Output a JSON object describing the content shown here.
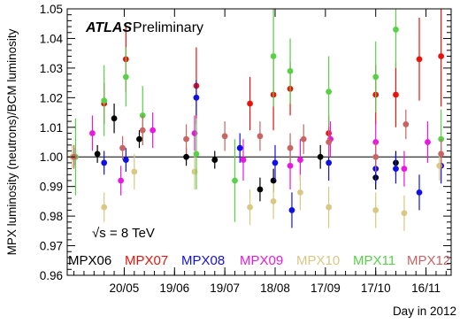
{
  "chart_data": {
    "type": "scatter",
    "brand": "ATLAS",
    "status": "Preliminary",
    "energy_label": "√s = 8 TeV",
    "xlabel": "Day in 2012",
    "ylabel": "MPX luminosity (neutrons)/BCM luminosity",
    "ylim": [
      0.96,
      1.05
    ],
    "y_ticks": [
      "0.96",
      "0.97",
      "0.98",
      "0.99",
      "1.00",
      "1.01",
      "1.02",
      "1.03",
      "1.04",
      "1.05"
    ],
    "x_ticks": [
      "20/05",
      "19/06",
      "19/07",
      "18/08",
      "17/09",
      "17/10",
      "16/11"
    ],
    "reference_line": 1.0,
    "series": [
      {
        "name": "MPX06",
        "color": "#000000",
        "points": [
          {
            "x": "2012-04-20",
            "y": 1.0,
            "err": 0.003
          },
          {
            "x": "2012-05-04",
            "y": 1.001,
            "err": 0.003
          },
          {
            "x": "2012-05-14",
            "y": 1.013,
            "err": 0.005
          },
          {
            "x": "2012-05-29",
            "y": 1.006,
            "err": 0.003
          },
          {
            "x": "2012-06-26",
            "y": 1.0,
            "err": 0.003
          },
          {
            "x": "2012-07-13",
            "y": 0.999,
            "err": 0.003
          },
          {
            "x": "2012-08-09",
            "y": 0.989,
            "err": 0.004
          },
          {
            "x": "2012-08-17",
            "y": 0.992,
            "err": 0.004
          },
          {
            "x": "2012-09-14",
            "y": 1.0,
            "err": 0.004
          },
          {
            "x": "2012-10-17",
            "y": 0.993,
            "err": 0.004
          },
          {
            "x": "2012-10-29",
            "y": 0.998,
            "err": 0.004
          }
        ]
      },
      {
        "name": "MPX07",
        "color": "#e8140c",
        "points": [
          {
            "x": "2012-05-08",
            "y": 1.018,
            "err": 0.007
          },
          {
            "x": "2012-05-21",
            "y": 1.033,
            "err": 0.011
          },
          {
            "x": "2012-07-02",
            "y": 1.024,
            "err": 0.013
          },
          {
            "x": "2012-08-03",
            "y": 1.018,
            "err": 0.009
          },
          {
            "x": "2012-08-17",
            "y": 1.021,
            "err": 0.012
          },
          {
            "x": "2012-08-27",
            "y": 1.023,
            "err": 0.009
          },
          {
            "x": "2012-09-19",
            "y": 1.008,
            "err": 0.006
          },
          {
            "x": "2012-10-17",
            "y": 1.021,
            "err": 0.01
          },
          {
            "x": "2012-10-29",
            "y": 1.021,
            "err": 0.011
          },
          {
            "x": "2012-11-12",
            "y": 1.033,
            "err": 0.014
          },
          {
            "x": "2012-11-25",
            "y": 1.034,
            "err": 0.017
          }
        ]
      },
      {
        "name": "MPX08",
        "color": "#1010e6",
        "points": [
          {
            "x": "2012-05-08",
            "y": 0.998,
            "err": 0.004
          },
          {
            "x": "2012-05-21",
            "y": 0.999,
            "err": 0.004
          },
          {
            "x": "2012-07-02",
            "y": 1.02,
            "err": 0.006
          },
          {
            "x": "2012-07-28",
            "y": 1.003,
            "err": 0.005
          },
          {
            "x": "2012-08-18",
            "y": 0.998,
            "err": 0.006
          },
          {
            "x": "2012-08-28",
            "y": 0.982,
            "err": 0.006
          },
          {
            "x": "2012-09-19",
            "y": 0.998,
            "err": 0.006
          },
          {
            "x": "2012-10-17",
            "y": 0.996,
            "err": 0.005
          },
          {
            "x": "2012-10-29",
            "y": 0.996,
            "err": 0.005
          },
          {
            "x": "2012-11-12",
            "y": 0.988,
            "err": 0.006
          },
          {
            "x": "2012-11-25",
            "y": 0.997,
            "err": 0.006
          }
        ]
      },
      {
        "name": "MPX09",
        "color": "#e818e0",
        "points": [
          {
            "x": "2012-05-01",
            "y": 1.008,
            "err": 0.006
          },
          {
            "x": "2012-05-18",
            "y": 0.992,
            "err": 0.005
          },
          {
            "x": "2012-06-06",
            "y": 1.009,
            "err": 0.006
          },
          {
            "x": "2012-07-01",
            "y": 1.008,
            "err": 0.006
          },
          {
            "x": "2012-07-30",
            "y": 0.999,
            "err": 0.007
          },
          {
            "x": "2012-08-27",
            "y": 0.997,
            "err": 0.008
          },
          {
            "x": "2012-09-02",
            "y": 0.999,
            "err": 0.007
          },
          {
            "x": "2012-09-20",
            "y": 1.006,
            "err": 0.006
          },
          {
            "x": "2012-10-17",
            "y": 1.005,
            "err": 0.007
          },
          {
            "x": "2012-11-03",
            "y": 0.996,
            "err": 0.006
          },
          {
            "x": "2012-11-17",
            "y": 1.005,
            "err": 0.007
          }
        ]
      },
      {
        "name": "MPX10",
        "color": "#d8c884",
        "points": [
          {
            "x": "2012-04-19",
            "y": 1.0,
            "err": 0.004
          },
          {
            "x": "2012-05-08",
            "y": 0.983,
            "err": 0.005
          },
          {
            "x": "2012-05-26",
            "y": 0.995,
            "err": 0.006
          },
          {
            "x": "2012-07-01",
            "y": 0.995,
            "err": 0.006
          },
          {
            "x": "2012-08-03",
            "y": 0.983,
            "err": 0.006
          },
          {
            "x": "2012-08-17",
            "y": 0.985,
            "err": 0.006
          },
          {
            "x": "2012-09-02",
            "y": 0.988,
            "err": 0.006
          },
          {
            "x": "2012-09-19",
            "y": 0.983,
            "err": 0.007
          },
          {
            "x": "2012-10-17",
            "y": 0.982,
            "err": 0.006
          },
          {
            "x": "2012-11-03",
            "y": 0.981,
            "err": 0.006
          },
          {
            "x": "2012-11-24",
            "y": 0.997,
            "err": 0.005
          }
        ]
      },
      {
        "name": "MPX11",
        "color": "#58d048",
        "points": [
          {
            "x": "2012-04-21",
            "y": 1.0,
            "err": 0.013
          },
          {
            "x": "2012-05-08",
            "y": 1.019,
            "err": 0.012
          },
          {
            "x": "2012-05-21",
            "y": 1.027,
            "err": 0.01
          },
          {
            "x": "2012-05-31",
            "y": 1.014,
            "err": 0.01
          },
          {
            "x": "2012-07-02",
            "y": 1.001,
            "err": 0.012
          },
          {
            "x": "2012-07-25",
            "y": 0.992,
            "err": 0.014
          },
          {
            "x": "2012-08-17",
            "y": 1.034,
            "err": 0.017
          },
          {
            "x": "2012-08-27",
            "y": 1.029,
            "err": 0.011
          },
          {
            "x": "2012-09-19",
            "y": 1.022,
            "err": 0.012
          },
          {
            "x": "2012-10-17",
            "y": 1.027,
            "err": 0.012
          },
          {
            "x": "2012-10-29",
            "y": 1.043,
            "err": 0.013
          },
          {
            "x": "2012-11-25",
            "y": 1.006,
            "err": 0.01
          }
        ]
      },
      {
        "name": "MPX12",
        "color": "#c86464",
        "points": [
          {
            "x": "2012-04-20",
            "y": 1.0,
            "err": 0.004
          },
          {
            "x": "2012-05-19",
            "y": 1.003,
            "err": 0.004
          },
          {
            "x": "2012-05-31",
            "y": 1.009,
            "err": 0.005
          },
          {
            "x": "2012-06-26",
            "y": 1.006,
            "err": 0.005
          },
          {
            "x": "2012-07-19",
            "y": 1.007,
            "err": 0.005
          },
          {
            "x": "2012-08-09",
            "y": 1.007,
            "err": 0.005
          },
          {
            "x": "2012-08-27",
            "y": 1.003,
            "err": 0.005
          },
          {
            "x": "2012-09-04",
            "y": 1.006,
            "err": 0.005
          },
          {
            "x": "2012-09-19",
            "y": 1.005,
            "err": 0.005
          },
          {
            "x": "2012-10-17",
            "y": 1.0,
            "err": 0.005
          },
          {
            "x": "2012-11-04",
            "y": 1.011,
            "err": 0.005
          },
          {
            "x": "2012-11-25",
            "y": 1.001,
            "err": 0.005
          }
        ]
      }
    ]
  }
}
